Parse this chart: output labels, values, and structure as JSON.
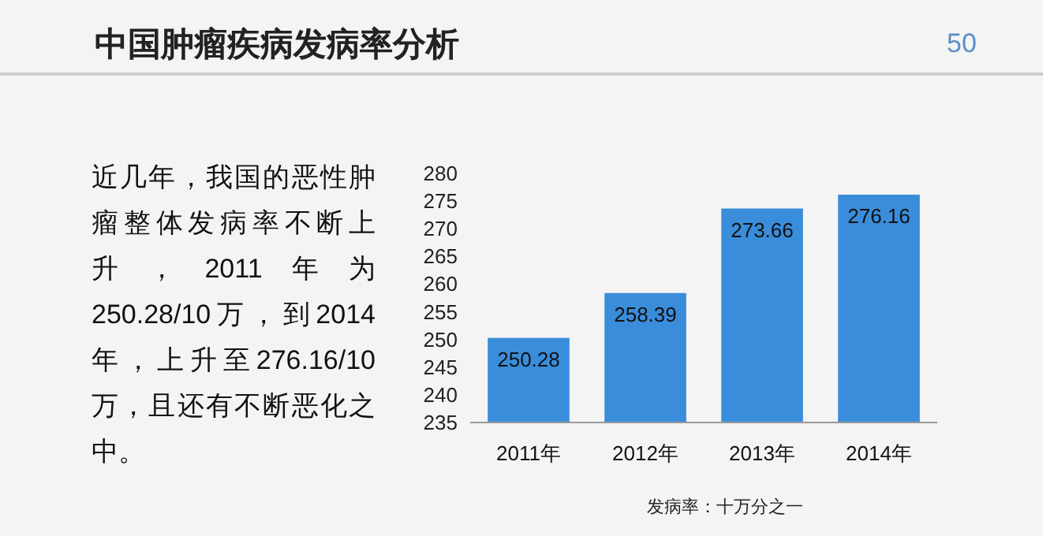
{
  "chart_data": {
    "type": "bar",
    "title": "中国肿瘤疾病发病率分析",
    "categories": [
      "2011年",
      "2012年",
      "2013年",
      "2014年"
    ],
    "values": [
      250.28,
      258.39,
      273.66,
      276.16
    ],
    "color": "#3a8ddb",
    "ylim": [
      235,
      280
    ],
    "yticks": [
      235,
      240,
      245,
      250,
      255,
      260,
      265,
      270,
      275,
      280
    ],
    "data_labels": true,
    "annotations": [
      "50",
      "近几年，我国的恶性肿瘤整体发病率不断上升，2011年为250.28/10万，到2014年，上升至276.16/10万，且还有不断恶化之中。",
      "发病率：十万分之一"
    ]
  }
}
